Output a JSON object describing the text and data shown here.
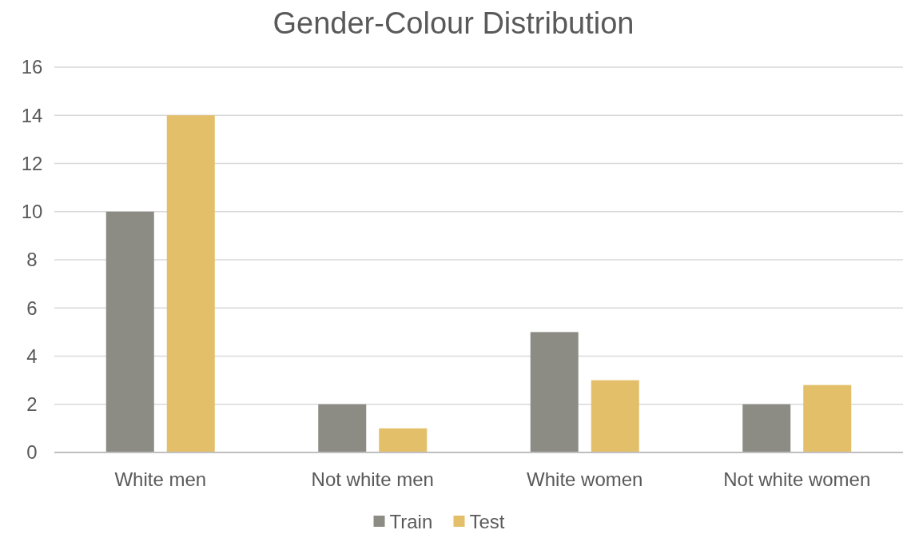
{
  "chart_data": {
    "type": "bar",
    "title": "Gender-Colour Distribution",
    "categories": [
      "White men",
      "Not white men",
      "White women",
      "Not white women"
    ],
    "series": [
      {
        "name": "Train",
        "color": "#8c8c84",
        "values": [
          10,
          2,
          5,
          2
        ]
      },
      {
        "name": "Test",
        "color": "#e4bf69",
        "values": [
          14,
          1,
          3,
          2.8
        ]
      }
    ],
    "ylim": [
      0,
      16
    ],
    "yticks": [
      0,
      2,
      4,
      6,
      8,
      10,
      12,
      14,
      16
    ],
    "grid": "y",
    "legend": "bottom"
  }
}
